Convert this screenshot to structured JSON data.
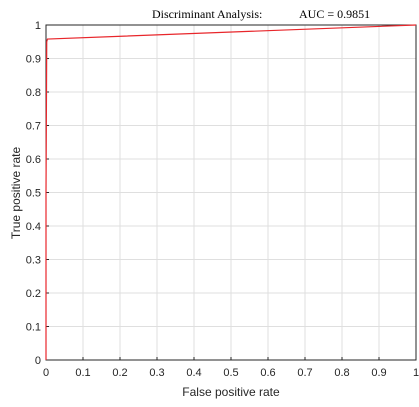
{
  "chart_data": {
    "type": "line",
    "title_method": "Discriminant Analysis:",
    "title_auc": "AUC = 0.9851",
    "xlabel": "False positive rate",
    "ylabel": "True positive rate",
    "xlim": [
      0,
      1
    ],
    "ylim": [
      0,
      1
    ],
    "grid": true,
    "xticks": [
      "0",
      "0.1",
      "0.2",
      "0.3",
      "0.4",
      "0.5",
      "0.6",
      "0.7",
      "0.8",
      "0.9",
      "1"
    ],
    "yticks": [
      "0",
      "0.1",
      "0.2",
      "0.3",
      "0.4",
      "0.5",
      "0.6",
      "0.7",
      "0.8",
      "0.9",
      "1"
    ],
    "series": [
      {
        "color": "#e8262b",
        "x": [
          0,
          0,
          0.002,
          0.004,
          1
        ],
        "y": [
          0,
          0.5,
          0.95,
          0.958,
          1
        ]
      }
    ]
  }
}
